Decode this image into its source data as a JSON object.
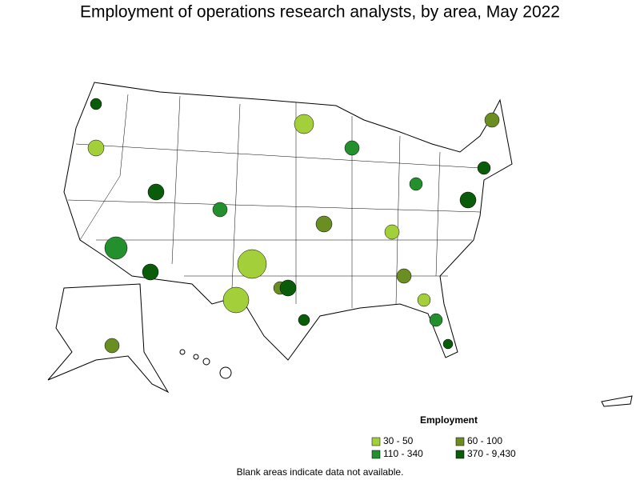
{
  "title": "Employment of operations research analysts, by area, May 2022",
  "legend": {
    "title": "Employment",
    "items": [
      {
        "label": "30 - 50",
        "color": "#a2cf3a"
      },
      {
        "label": "60 - 100",
        "color": "#6b8e23"
      },
      {
        "label": "110 - 340",
        "color": "#23902d"
      },
      {
        "label": "370 - 9,430",
        "color": "#0a5c0a"
      }
    ]
  },
  "note": "Blank areas indicate data not available."
}
